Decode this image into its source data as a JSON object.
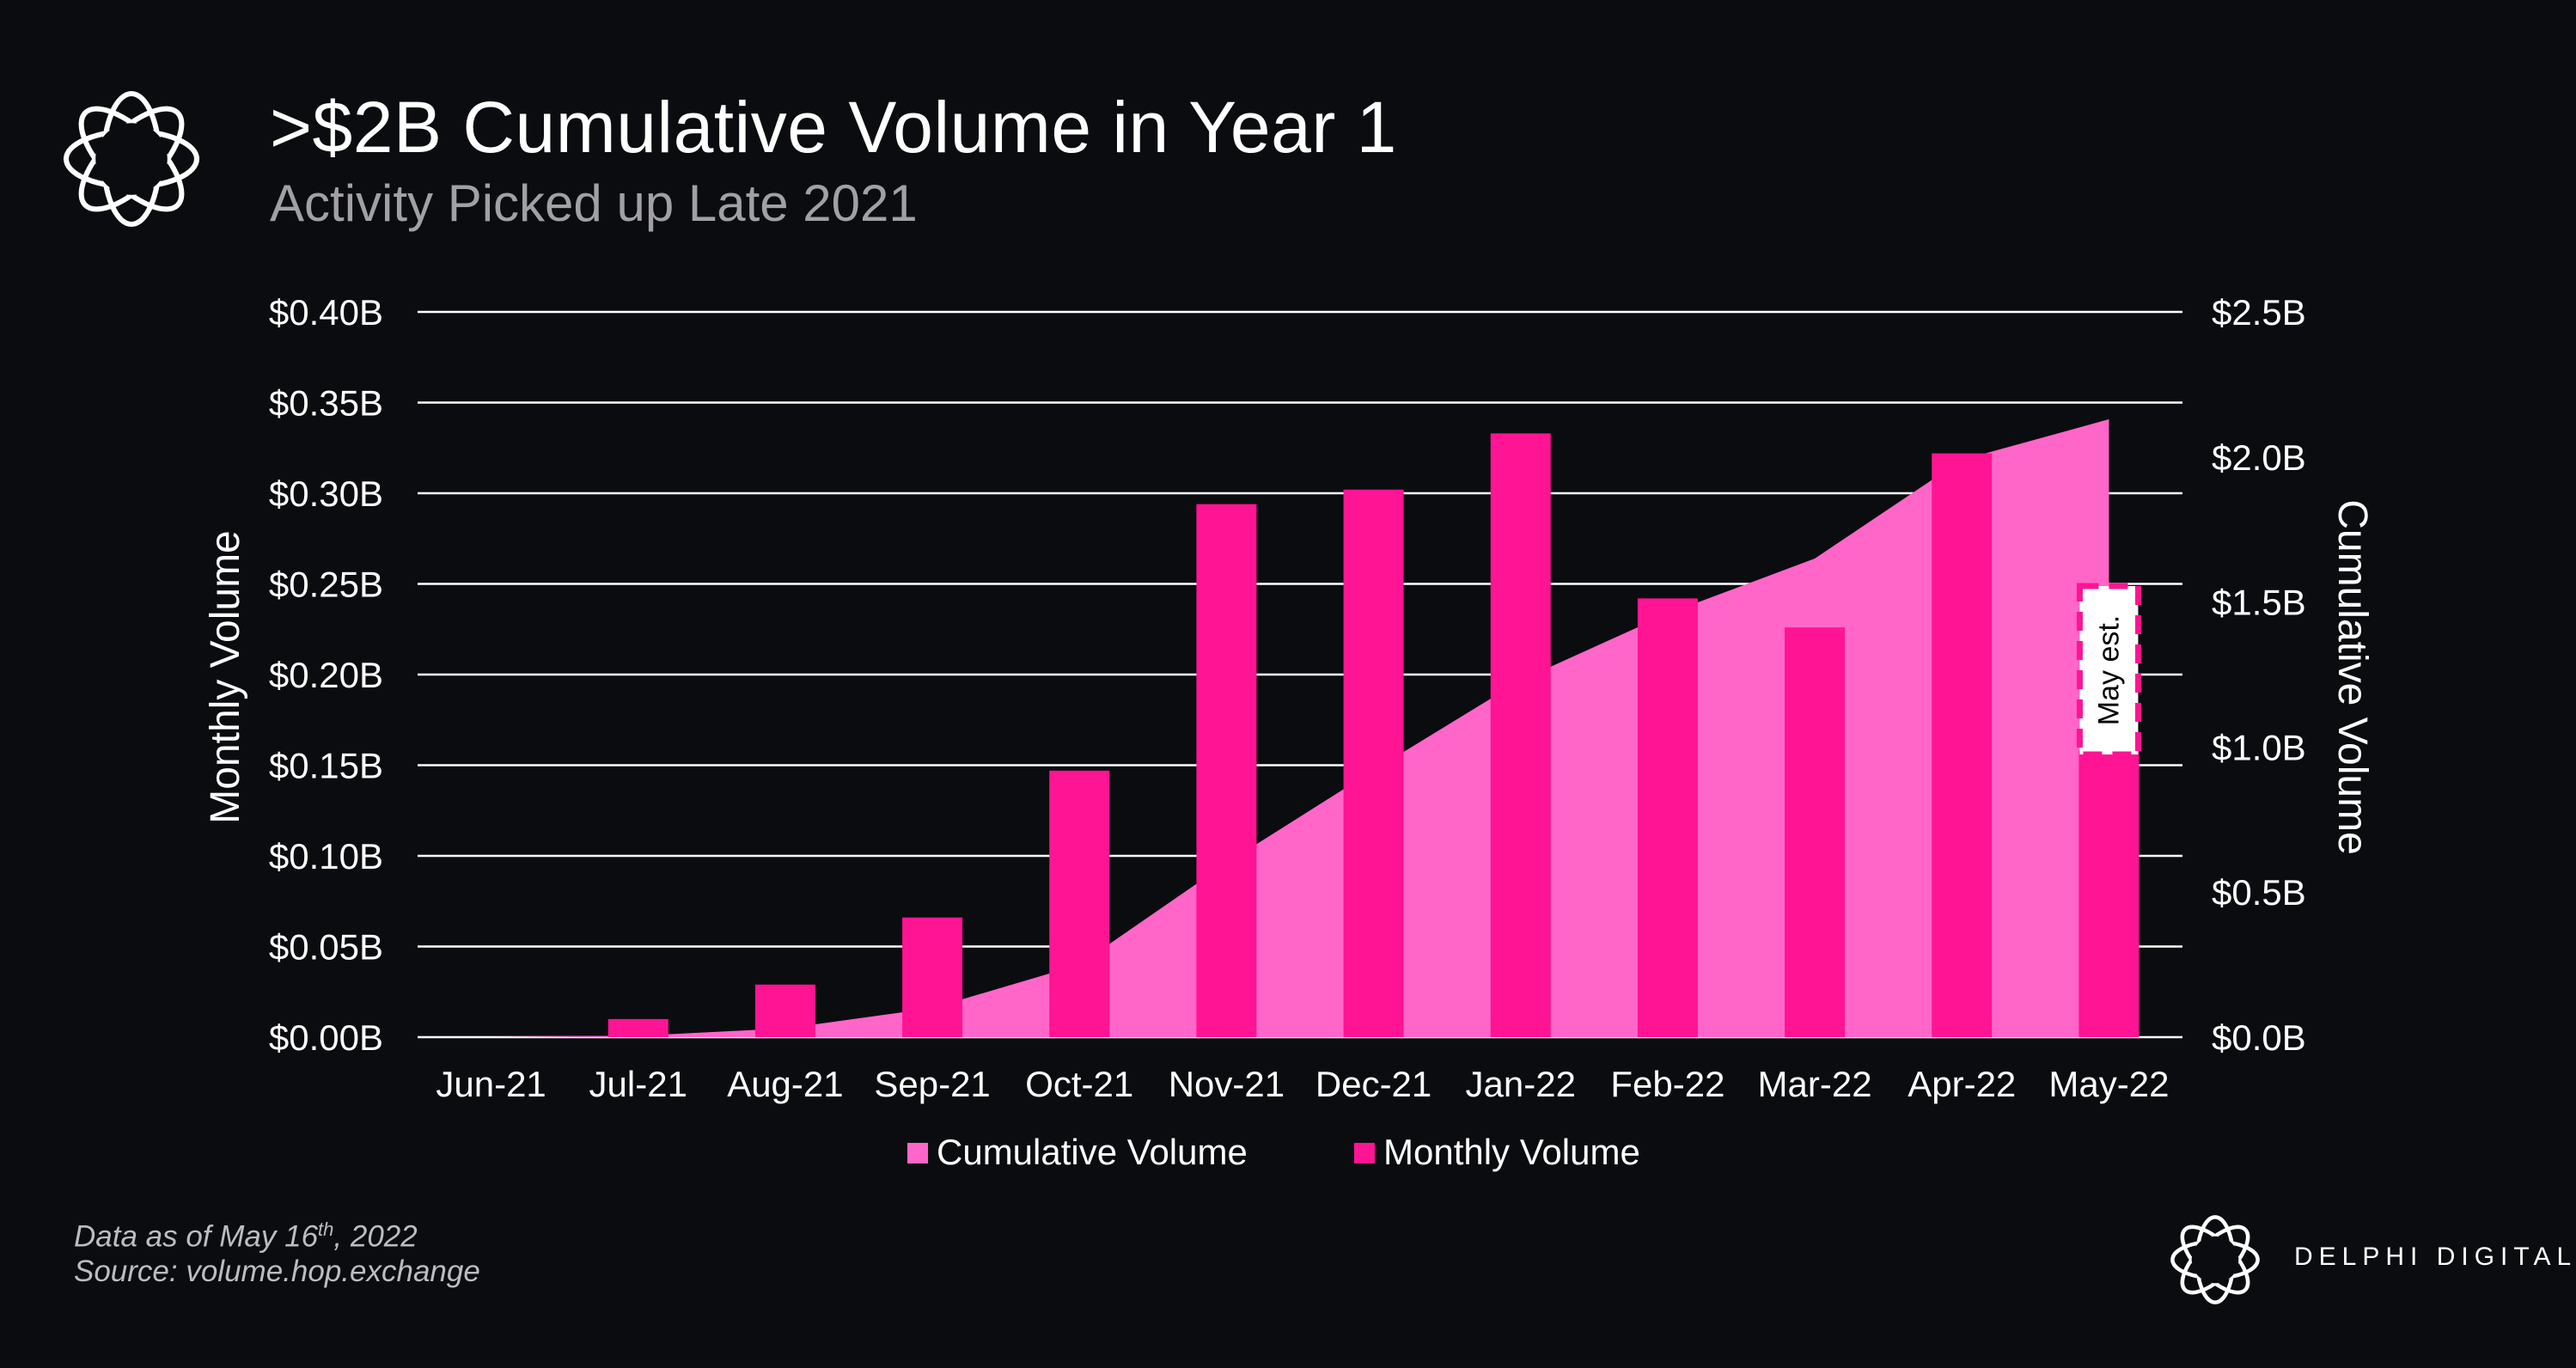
{
  "header": {
    "title": ">$2B Cumulative Volume in Year 1",
    "subtitle": "Activity Picked up Late 2021"
  },
  "footer": {
    "data_note_prefix": "Data as of May 16",
    "data_note_sup": "th",
    "data_note_suffix": ", 2022",
    "source": "Source: volume.hop.exchange",
    "brand": "DELPHI DIGITAL"
  },
  "colors": {
    "background": "#0b0c10",
    "cumulative": "#ff66c8",
    "monthly": "#ff1493",
    "gridline": "#ffffff"
  },
  "icons": {
    "main_logo": "delphi-knot-icon",
    "brand_logo": "delphi-knot-icon"
  },
  "chart_data": {
    "type": "bar",
    "categories": [
      "Jun-21",
      "Jul-21",
      "Aug-21",
      "Sep-21",
      "Oct-21",
      "Nov-21",
      "Dec-21",
      "Jan-22",
      "Feb-22",
      "Mar-22",
      "Apr-22",
      "May-22"
    ],
    "series": [
      {
        "name": "Cumulative Volume",
        "type": "area",
        "axis": "right",
        "values": [
          0.0,
          0.005,
          0.03,
          0.1,
          0.25,
          0.6,
          0.92,
          1.23,
          1.46,
          1.65,
          1.99,
          2.13
        ]
      },
      {
        "name": "Monthly Volume",
        "type": "bar",
        "axis": "left",
        "values": [
          0.0,
          0.01,
          0.029,
          0.066,
          0.147,
          0.294,
          0.302,
          0.333,
          0.242,
          0.226,
          0.322,
          0.158
        ]
      }
    ],
    "ylabel": "Monthly Volume",
    "y2label": "Cumulative Volume",
    "ylim": [
      0,
      0.4
    ],
    "y2lim": [
      0,
      2.5
    ],
    "yticks": [
      "$0.00B",
      "$0.05B",
      "$0.10B",
      "$0.15B",
      "$0.20B",
      "$0.25B",
      "$0.30B",
      "$0.35B",
      "$0.40B"
    ],
    "y2ticks": [
      "$0.0B",
      "$0.5B",
      "$1.0B",
      "$1.5B",
      "$2.0B",
      "$2.5B"
    ],
    "annotation": "May est.",
    "grid": true,
    "legend_position": "bottom"
  }
}
